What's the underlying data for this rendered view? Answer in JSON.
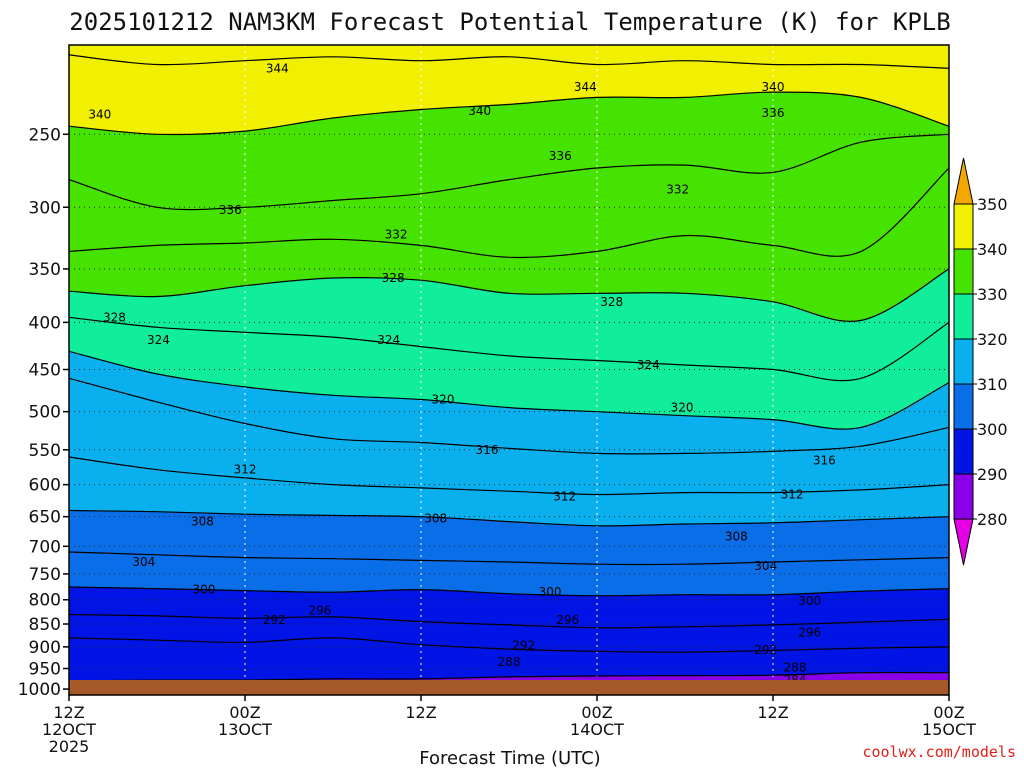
{
  "chart_data": {
    "type": "heatmap",
    "title": "2025101212 NAM3KM Forecast Potential Temperature (K) for KPLB",
    "xlabel": "Forecast Time (UTC)",
    "credit": "coolwx.com/models",
    "x_range_hours": [
      0,
      60
    ],
    "y_range_hPa": [
      1015,
      200
    ],
    "y_scale": "log",
    "y_ticks": [
      250,
      300,
      350,
      400,
      450,
      500,
      550,
      600,
      650,
      700,
      750,
      800,
      850,
      900,
      950,
      1000
    ],
    "x_ticks": [
      {
        "hour": 0,
        "l1": "12Z",
        "l2": "12OCT",
        "l3": "2025"
      },
      {
        "hour": 12,
        "l1": "00Z",
        "l2": "13OCT",
        "l3": ""
      },
      {
        "hour": 24,
        "l1": "12Z",
        "l2": "",
        "l3": ""
      },
      {
        "hour": 36,
        "l1": "00Z",
        "l2": "14OCT",
        "l3": ""
      },
      {
        "hour": 48,
        "l1": "12Z",
        "l2": "",
        "l3": ""
      },
      {
        "hour": 60,
        "l1": "00Z",
        "l2": "15OCT",
        "l3": ""
      }
    ],
    "colorbar": {
      "levels": [
        280,
        290,
        300,
        310,
        320,
        330,
        340,
        350
      ],
      "colors": [
        "#8a00e8",
        "#0014e6",
        "#0a6ee8",
        "#0ab0ee",
        "#10ee9c",
        "#46e200",
        "#f0f000"
      ],
      "over_color": "#f2a800",
      "under_color": "#e600e6"
    },
    "contour_interval": 4,
    "isentropes": [
      {
        "theta": 284,
        "p": [
          1005,
          1005,
          1005,
          1005,
          1005,
          1005,
          1005,
          1003,
          1003,
          998,
          995
        ]
      },
      {
        "theta": 288,
        "p": [
          980,
          978,
          978,
          975,
          975,
          970,
          968,
          967,
          966,
          960,
          960
        ]
      },
      {
        "theta": 292,
        "p": [
          880,
          885,
          890,
          880,
          895,
          905,
          910,
          912,
          908,
          903,
          900
        ]
      },
      {
        "theta": 296,
        "p": [
          830,
          833,
          838,
          835,
          845,
          852,
          858,
          856,
          852,
          846,
          840
        ]
      },
      {
        "theta": 300,
        "p": [
          775,
          778,
          782,
          785,
          780,
          788,
          792,
          790,
          790,
          783,
          778
        ]
      },
      {
        "theta": 304,
        "p": [
          710,
          715,
          720,
          722,
          725,
          728,
          732,
          732,
          728,
          724,
          720
        ]
      },
      {
        "theta": 308,
        "p": [
          640,
          642,
          646,
          648,
          650,
          658,
          665,
          662,
          660,
          655,
          650
        ]
      },
      {
        "theta": 312,
        "p": [
          560,
          578,
          590,
          600,
          605,
          610,
          615,
          612,
          612,
          608,
          600
        ]
      },
      {
        "theta": 316,
        "p": [
          460,
          488,
          515,
          535,
          540,
          548,
          555,
          555,
          552,
          545,
          520
        ]
      },
      {
        "theta": 320,
        "p": [
          430,
          455,
          470,
          480,
          485,
          495,
          500,
          505,
          510,
          520,
          465
        ]
      },
      {
        "theta": 324,
        "p": [
          395,
          405,
          410,
          415,
          425,
          435,
          440,
          445,
          450,
          460,
          400
        ]
      },
      {
        "theta": 328,
        "p": [
          370,
          375,
          365,
          358,
          360,
          372,
          372,
          372,
          380,
          398,
          350
        ]
      },
      {
        "theta": 332,
        "p": [
          335,
          330,
          328,
          325,
          330,
          340,
          335,
          322,
          330,
          335,
          272
        ]
      },
      {
        "theta": 336,
        "p": [
          280,
          300,
          300,
          295,
          290,
          280,
          272,
          270,
          275,
          255,
          250
        ]
      },
      {
        "theta": 340,
        "p": [
          245,
          250,
          248,
          240,
          235,
          232,
          228,
          228,
          225,
          228,
          245
        ]
      },
      {
        "theta": 344,
        "p": [
          205,
          210,
          208,
          206,
          208,
          206,
          210,
          208,
          210,
          210,
          212
        ]
      }
    ],
    "contour_labels": [
      {
        "text": "344",
        "hour": 14.2,
        "p": 212
      },
      {
        "text": "344",
        "hour": 35.2,
        "p": 222
      },
      {
        "text": "340",
        "hour": 2.1,
        "p": 238
      },
      {
        "text": "340",
        "hour": 28.0,
        "p": 236
      },
      {
        "text": "340",
        "hour": 48.0,
        "p": 222
      },
      {
        "text": "336",
        "hour": 48.0,
        "p": 237
      },
      {
        "text": "336",
        "hour": 33.5,
        "p": 264
      },
      {
        "text": "336",
        "hour": 11.0,
        "p": 302
      },
      {
        "text": "332",
        "hour": 41.5,
        "p": 287
      },
      {
        "text": "332",
        "hour": 22.3,
        "p": 321
      },
      {
        "text": "328",
        "hour": 22.1,
        "p": 358
      },
      {
        "text": "328",
        "hour": 37.0,
        "p": 380
      },
      {
        "text": "328",
        "hour": 3.1,
        "p": 395
      },
      {
        "text": "324",
        "hour": 6.1,
        "p": 418
      },
      {
        "text": "324",
        "hour": 21.8,
        "p": 418
      },
      {
        "text": "324",
        "hour": 39.5,
        "p": 445
      },
      {
        "text": "320",
        "hour": 25.5,
        "p": 485
      },
      {
        "text": "320",
        "hour": 41.8,
        "p": 495
      },
      {
        "text": "316",
        "hour": 28.5,
        "p": 550
      },
      {
        "text": "316",
        "hour": 51.5,
        "p": 565
      },
      {
        "text": "312",
        "hour": 12.0,
        "p": 578
      },
      {
        "text": "312",
        "hour": 33.8,
        "p": 618
      },
      {
        "text": "312",
        "hour": 49.3,
        "p": 615
      },
      {
        "text": "308",
        "hour": 9.1,
        "p": 658
      },
      {
        "text": "308",
        "hour": 25.0,
        "p": 653
      },
      {
        "text": "308",
        "hour": 45.5,
        "p": 683
      },
      {
        "text": "304",
        "hour": 5.1,
        "p": 728
      },
      {
        "text": "304",
        "hour": 47.5,
        "p": 735
      },
      {
        "text": "300",
        "hour": 9.2,
        "p": 780
      },
      {
        "text": "300",
        "hour": 32.8,
        "p": 785
      },
      {
        "text": "300",
        "hour": 50.5,
        "p": 803
      },
      {
        "text": "296",
        "hour": 17.1,
        "p": 822
      },
      {
        "text": "296",
        "hour": 34.0,
        "p": 842
      },
      {
        "text": "296",
        "hour": 50.5,
        "p": 868
      },
      {
        "text": "292",
        "hour": 14.0,
        "p": 842
      },
      {
        "text": "292",
        "hour": 31.0,
        "p": 897
      },
      {
        "text": "292",
        "hour": 47.5,
        "p": 907
      },
      {
        "text": "288",
        "hour": 30.0,
        "p": 935
      },
      {
        "text": "288",
        "hour": 49.5,
        "p": 947
      },
      {
        "text": "288",
        "hour": 11.1,
        "p": 1003
      },
      {
        "text": "284",
        "hour": 49.5,
        "p": 978
      }
    ]
  }
}
